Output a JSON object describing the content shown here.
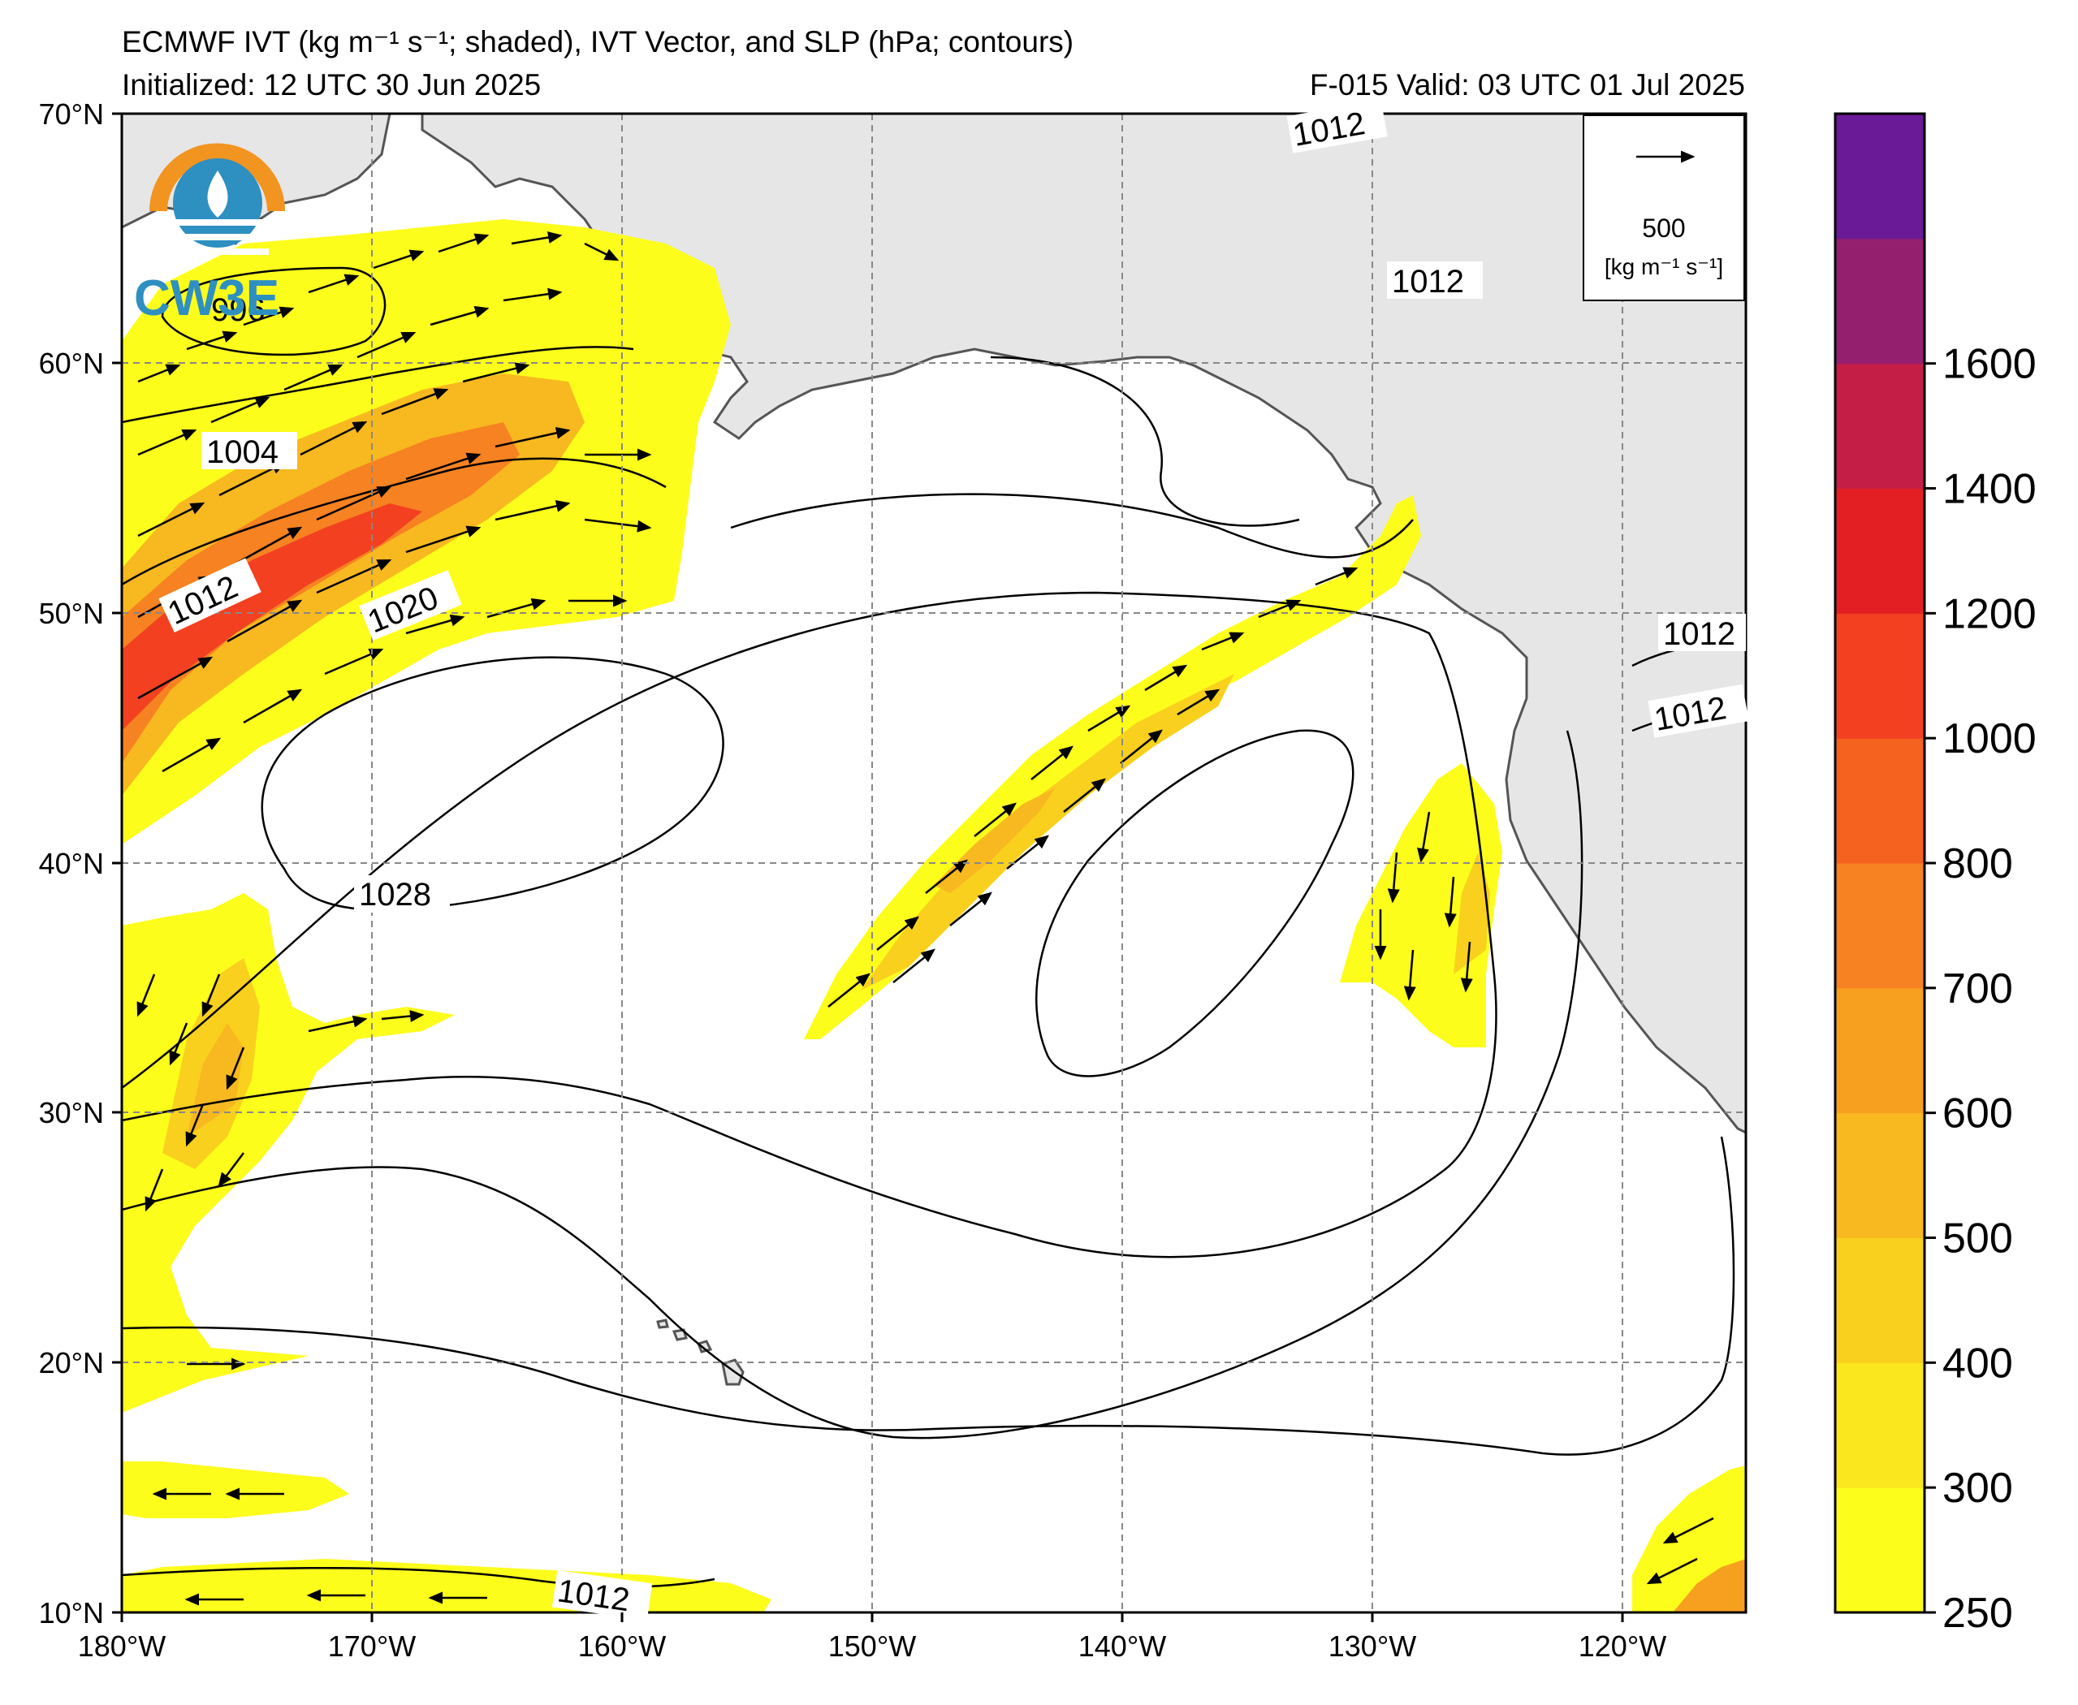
{
  "header": {
    "title_line1": "ECMWF IVT (kg m⁻¹ s⁻¹; shaded), IVT Vector, and SLP (hPa; contours)",
    "title_line2": "Initialized: 12 UTC 30 Jun 2025",
    "valid": "F-015  Valid: 03 UTC 01 Jul 2025"
  },
  "logo": {
    "text": "CW3E"
  },
  "vector_key": {
    "value": "500",
    "units": "[kg m⁻¹ s⁻¹]"
  },
  "latitude_labels": [
    "70°N",
    "60°N",
    "50°N",
    "40°N",
    "30°N",
    "20°N",
    "10°N"
  ],
  "longitude_labels": [
    "180°W",
    "170°W",
    "160°W",
    "150°W",
    "140°W",
    "130°W",
    "120°W"
  ],
  "colorbar": {
    "ticks": [
      "250",
      "300",
      "400",
      "500",
      "600",
      "700",
      "800",
      "1000",
      "1200",
      "1400",
      "1600"
    ],
    "colors": [
      "#fdfd1c",
      "#fbe71d",
      "#f9d01d",
      "#f8b81f",
      "#f7a020",
      "#f68221",
      "#f5621f",
      "#f24021",
      "#e31f24",
      "#c41e47",
      "#951f6f",
      "#6a1a96"
    ]
  },
  "contour_labels": {
    "c1004": "1004",
    "c1012_w": "1012",
    "c1020": "1020",
    "c1028": "1028",
    "c1012_n": "1012",
    "c1012_ak": "1012",
    "c1012_e1": "1012",
    "c1012_e2": "1012",
    "c1012_s": "1012",
    "c996": "996"
  }
}
